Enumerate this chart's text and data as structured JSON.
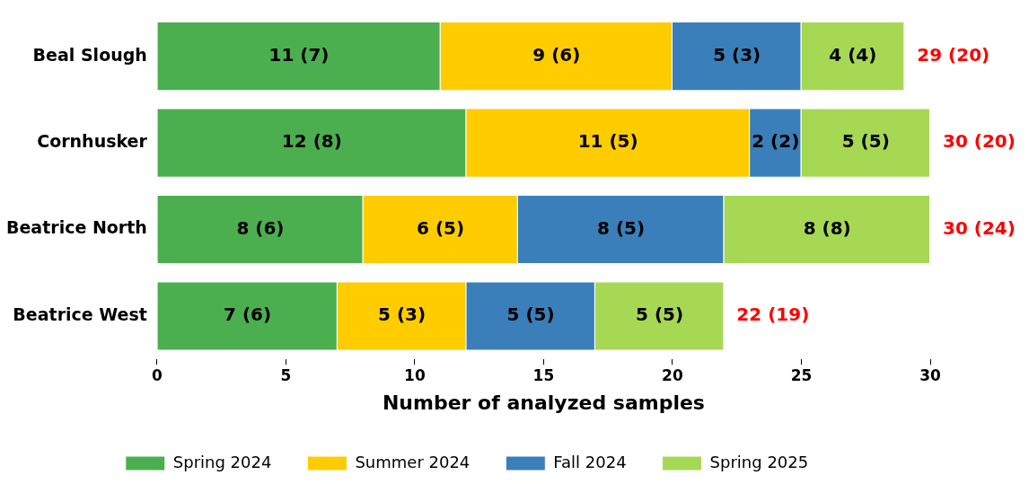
{
  "chart_data": {
    "type": "bar",
    "orientation": "horizontal",
    "stacked": true,
    "xlabel": "Number of analyzed samples",
    "categories": [
      "Beal Slough",
      "Cornhusker",
      "Beatrice North",
      "Beatrice West"
    ],
    "series": [
      {
        "name": "Spring 2024",
        "color": "#4caf4f",
        "values": [
          11,
          12,
          8,
          7
        ],
        "value_labels": [
          "11 (7)",
          "12 (8)",
          "8 (6)",
          "7 (6)"
        ]
      },
      {
        "name": "Summer 2024",
        "color": "#ffcc00",
        "values": [
          9,
          11,
          6,
          5
        ],
        "value_labels": [
          "9 (6)",
          "11 (5)",
          "6 (5)",
          "5 (3)"
        ]
      },
      {
        "name": "Fall 2024",
        "color": "#3a7fba",
        "values": [
          5,
          2,
          8,
          5
        ],
        "value_labels": [
          "5 (3)",
          "2 (2)",
          "8 (5)",
          "5 (5)"
        ]
      },
      {
        "name": "Spring 2025",
        "color": "#a6d854",
        "values": [
          4,
          5,
          8,
          5
        ],
        "value_labels": [
          "4 (4)",
          "5 (5)",
          "8 (8)",
          "5 (5)"
        ]
      }
    ],
    "totals": [
      "29 (20)",
      "30 (20)",
      "30 (24)",
      "22 (19)"
    ],
    "xlim": [
      0,
      30
    ],
    "xticks": [
      0,
      5,
      10,
      15,
      20,
      25,
      30
    ],
    "grid": false,
    "legend": "bottom"
  }
}
